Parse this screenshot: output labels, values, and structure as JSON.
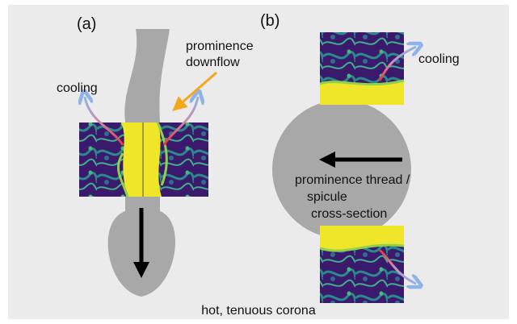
{
  "panels": [
    {
      "label": "(a)",
      "annotation": [
        "prominence",
        "downflow"
      ],
      "cooling": "cooling"
    },
    {
      "label": "(b)",
      "cooling": "cooling",
      "caption": [
        "prominence thread /",
        "spicule",
        "cross-section"
      ]
    }
  ],
  "footer": "hot, tenuous corona"
}
